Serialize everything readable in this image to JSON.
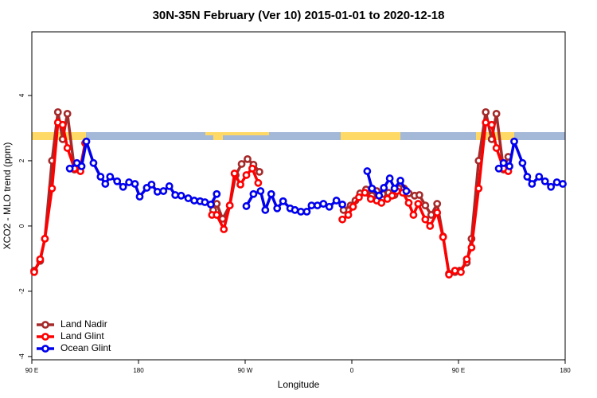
{
  "chart_data": {
    "type": "line",
    "title": "30N-35N February (Ver 10)   2015-01-01 to 2020-12-18",
    "xlabel": "Longitude",
    "ylabel": "XCO2 - MLO trend (ppm)",
    "xlim": [
      90,
      540
    ],
    "ylim": [
      -4.1,
      5.95
    ],
    "xticks": [
      {
        "value": 90,
        "label": "90 E"
      },
      {
        "value": 180,
        "label": "180"
      },
      {
        "value": 270,
        "label": "90 W"
      },
      {
        "value": 360,
        "label": "0"
      },
      {
        "value": 450,
        "label": "90 E"
      },
      {
        "value": 540,
        "label": "180"
      }
    ],
    "yticks": [
      -4,
      -2,
      0,
      2,
      4
    ],
    "legend": "bottom-left",
    "series": [
      {
        "name": "Land Nadir",
        "color": "#a52a2a",
        "x": [
          92,
          97,
          101,
          107,
          112,
          116,
          120,
          126,
          131,
          135,
          190,
          243,
          246,
          251,
          257,
          262,
          267,
          272,
          277,
          282,
          320,
          353,
          359,
          363,
          367,
          372,
          377,
          381,
          386,
          391,
          396,
          400,
          404,
          408,
          413,
          417,
          422,
          427,
          432,
          437,
          442,
          447,
          451,
          457,
          461,
          467,
          473,
          478,
          482,
          488,
          492
        ],
        "values": [
          -1.37,
          -1.07,
          -0.39,
          2.0,
          3.49,
          2.66,
          3.44,
          1.73,
          1.8,
          2.54,
          null,
          0.49,
          0.68,
          0.22,
          0.63,
          1.56,
          1.9,
          2.05,
          1.88,
          1.66,
          null,
          0.49,
          0.63,
          0.78,
          1.0,
          1.12,
          0.93,
          1.07,
          0.98,
          1.02,
          0.95,
          1.15,
          1.15,
          1.0,
          0.93,
          0.95,
          0.63,
          0.34,
          0.68,
          -0.32,
          -1.46,
          -1.41,
          -1.37,
          -1.12,
          -0.39,
          2.0,
          3.49,
          2.66,
          3.44,
          1.73,
          2.12
        ]
      },
      {
        "name": "Land Glint",
        "color": "#ff0000",
        "x": [
          92,
          97,
          101,
          107,
          112,
          116,
          120,
          126,
          131,
          135,
          190,
          242,
          246,
          252,
          257,
          261,
          266,
          271,
          276,
          281,
          320,
          352,
          357,
          361,
          366,
          371,
          376,
          381,
          385,
          390,
          394,
          398,
          403,
          408,
          412,
          416,
          422,
          426,
          432,
          437,
          442,
          447,
          452,
          457,
          461,
          467,
          473,
          478,
          482,
          488,
          492
        ],
        "values": [
          -1.41,
          -1.02,
          -0.39,
          1.15,
          3.17,
          3.1,
          2.39,
          1.76,
          1.68,
          2.54,
          null,
          0.34,
          0.34,
          -0.1,
          0.63,
          1.61,
          1.27,
          1.56,
          1.76,
          1.32,
          null,
          0.2,
          0.34,
          0.59,
          0.88,
          1.02,
          0.83,
          0.78,
          0.71,
          0.83,
          0.93,
          1.07,
          1.02,
          0.71,
          0.34,
          0.68,
          0.2,
          0,
          0.41,
          -0.34,
          -1.49,
          -1.37,
          -1.41,
          -1.02,
          -0.66,
          1.15,
          3.17,
          3.1,
          2.39,
          1.76,
          1.68
        ]
      },
      {
        "name": "Ocean Glint",
        "color": "#0000ee",
        "x": [
          122,
          128,
          132,
          136,
          142,
          148,
          152,
          156,
          162,
          167,
          172,
          177,
          181,
          187,
          191,
          196,
          201,
          206,
          211,
          216,
          222,
          227,
          232,
          236,
          241,
          246,
          258,
          271,
          277,
          283,
          287,
          292,
          297,
          302,
          308,
          312,
          317,
          322,
          326,
          331,
          336,
          341,
          347,
          352,
          362,
          373,
          377,
          383,
          387,
          392,
          396,
          401,
          406,
          450,
          484,
          488,
          493,
          497,
          504,
          508,
          512,
          518,
          523,
          528,
          533,
          538
        ],
        "values": [
          1.76,
          1.93,
          1.83,
          2.59,
          1.93,
          1.51,
          1.29,
          1.51,
          1.37,
          1.2,
          1.34,
          1.29,
          0.9,
          1.17,
          1.27,
          1.05,
          1.07,
          1.22,
          0.95,
          0.93,
          0.85,
          0.78,
          0.76,
          0.73,
          0.66,
          0.98,
          null,
          0.61,
          0.98,
          1.07,
          0.49,
          0.98,
          0.54,
          0.76,
          0.54,
          0.49,
          0.44,
          0.44,
          0.63,
          0.63,
          0.68,
          0.59,
          0.78,
          0.66,
          null,
          1.68,
          1.15,
          0.93,
          1.17,
          1.46,
          1.15,
          1.39,
          1.07,
          null,
          1.76,
          1.93,
          1.83,
          2.59,
          1.93,
          1.51,
          1.29,
          1.51,
          1.37,
          1.2,
          1.34,
          1.29
        ]
      }
    ]
  }
}
